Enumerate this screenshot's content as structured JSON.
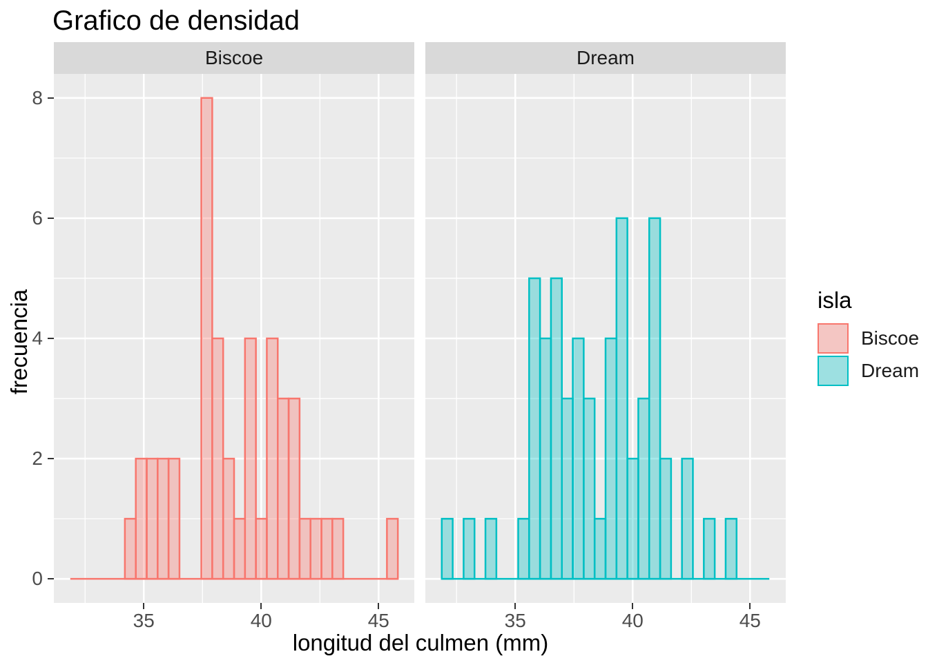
{
  "title": "Grafico de densidad",
  "axes": {
    "x": {
      "title": "longitud del culmen (mm)",
      "tick_labels": [
        "35",
        "40",
        "45"
      ],
      "tick_values": [
        35,
        40,
        45
      ],
      "minor_values": [
        32.5,
        37.5,
        42.5
      ],
      "domain": [
        31.17,
        46.52
      ]
    },
    "y": {
      "title": "frecuencia",
      "tick_labels": [
        "0",
        "2",
        "4",
        "6",
        "8"
      ],
      "tick_values": [
        0,
        2,
        4,
        6,
        8
      ],
      "minor_values": [
        1,
        3,
        5,
        7
      ],
      "domain": [
        -0.4,
        8.4
      ]
    }
  },
  "legend": {
    "title": "isla",
    "items": [
      {
        "label": "Biscoe",
        "color": "#F8766D"
      },
      {
        "label": "Dream",
        "color": "#00BFC4"
      }
    ]
  },
  "style": {
    "panel_bg": "#EBEBEB",
    "strip_bg": "#D9D9D9",
    "grid_color": "#FFFFFF",
    "tick_label_color": "#4D4D4D",
    "tick_mark_color": "#333333",
    "fill_alpha": 0.35,
    "legend_key_bg": "#F2F2F2",
    "bar_stroke_width": 2.5
  },
  "chart_data": {
    "type": "bar",
    "subtype": "faceted-histogram",
    "title": "Grafico de densidad",
    "xlabel": "longitud del culmen (mm)",
    "ylabel": "frecuencia",
    "legend_title": "isla",
    "xlim": [
      31.17,
      46.52
    ],
    "ylim": [
      0,
      8
    ],
    "grid": "on",
    "legend_position": "right",
    "bin_start": 31.87,
    "bin_width": 0.465,
    "facets": [
      {
        "label": "Biscoe",
        "color": "#F8766D",
        "counts": [
          0,
          0,
          0,
          0,
          0,
          1,
          2,
          2,
          2,
          2,
          0,
          0,
          8,
          4,
          2,
          1,
          4,
          1,
          4,
          3,
          3,
          1,
          1,
          1,
          1,
          0,
          0,
          0,
          0,
          1
        ]
      },
      {
        "label": "Dream",
        "color": "#00BFC4",
        "counts": [
          1,
          0,
          1,
          0,
          1,
          0,
          0,
          1,
          5,
          4,
          5,
          3,
          4,
          3,
          1,
          4,
          6,
          2,
          3,
          6,
          2,
          0,
          2,
          0,
          1,
          0,
          1,
          0,
          0,
          0
        ]
      }
    ]
  }
}
